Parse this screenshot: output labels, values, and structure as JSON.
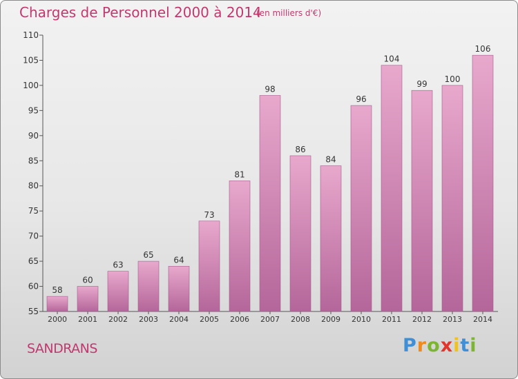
{
  "header": {
    "title": "Charges de Personnel 2000 à 2014",
    "subtitle": "(en milliers d'€)"
  },
  "footer": {
    "commune": "SANDRANS",
    "logo_letters": [
      "P",
      "r",
      "o",
      "x",
      "i",
      "t",
      "i"
    ],
    "logo_colors": [
      "#3e8fd8",
      "#f08a1c",
      "#7bb531",
      "#e2342a",
      "#f1c21a",
      "#3e8fd8",
      "#7bb531"
    ]
  },
  "colors": {
    "title": "#c2386e",
    "bar_top": "#e8a8cc",
    "bar_bottom": "#b4669a",
    "axis": "#555555"
  },
  "chart_data": {
    "type": "bar",
    "categories": [
      "2000",
      "2001",
      "2002",
      "2003",
      "2004",
      "2005",
      "2006",
      "2007",
      "2008",
      "2009",
      "2010",
      "2011",
      "2012",
      "2013",
      "2014"
    ],
    "values": [
      58,
      60,
      63,
      65,
      64,
      73,
      81,
      98,
      86,
      84,
      96,
      104,
      99,
      100,
      106
    ],
    "ylim": [
      55,
      110
    ],
    "yticks": [
      55,
      60,
      65,
      70,
      75,
      80,
      85,
      90,
      95,
      100,
      105,
      110
    ],
    "grid": false,
    "data_labels": true
  }
}
